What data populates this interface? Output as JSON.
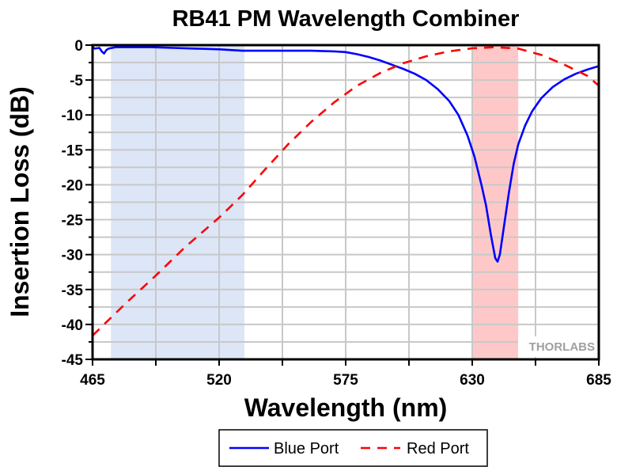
{
  "chart_data": {
    "type": "line",
    "title": "RB41 PM Wavelength Combiner",
    "xlabel": "Wavelength (nm)",
    "ylabel": "Insertion Loss (dB)",
    "xlim": [
      465,
      685
    ],
    "ylim": [
      -45,
      0
    ],
    "xticks": [
      465,
      520,
      575,
      630,
      685
    ],
    "xtick_labels": [
      "465",
      "520",
      "575",
      "630",
      "685"
    ],
    "yticks": [
      0,
      -5,
      -10,
      -15,
      -20,
      -25,
      -30,
      -35,
      -40,
      -45
    ],
    "ytick_labels": [
      "0",
      "-5",
      "-10",
      "-15",
      "-20",
      "-25",
      "-30",
      "-35",
      "-40",
      "-45"
    ],
    "grid": true,
    "shaded_bands": [
      {
        "x": [
          473,
          531
        ],
        "color": "#dce6f7"
      },
      {
        "x": [
          630,
          650
        ],
        "color": "#ffc8c8"
      }
    ],
    "series": [
      {
        "name": "Blue Port",
        "color": "#0000ff",
        "style": "solid",
        "x": [
          465,
          466,
          468,
          469,
          470,
          471,
          472,
          475,
          480,
          490,
          500,
          510,
          520,
          530,
          540,
          550,
          560,
          570,
          575,
          580,
          585,
          590,
          595,
          600,
          605,
          610,
          615,
          620,
          624,
          628,
          631,
          634,
          636,
          638,
          640,
          641,
          642,
          644,
          646,
          648,
          650,
          653,
          656,
          660,
          665,
          670,
          675,
          680,
          685
        ],
        "y": [
          -0.3,
          -0.5,
          -0.4,
          -0.9,
          -1.2,
          -0.7,
          -0.5,
          -0.3,
          -0.3,
          -0.3,
          -0.4,
          -0.5,
          -0.6,
          -0.8,
          -0.8,
          -0.8,
          -0.8,
          -0.9,
          -1.0,
          -1.3,
          -1.7,
          -2.2,
          -2.8,
          -3.4,
          -4.1,
          -5.0,
          -6.3,
          -8.0,
          -10.0,
          -13.0,
          -16.0,
          -20.0,
          -23.0,
          -27.0,
          -30.5,
          -31.0,
          -30.0,
          -25.5,
          -21.0,
          -17.0,
          -14.2,
          -11.5,
          -9.5,
          -7.6,
          -6.0,
          -4.9,
          -4.1,
          -3.5,
          -3.0
        ]
      },
      {
        "name": "Red Port",
        "color": "#ff0000",
        "style": "dashed",
        "x": [
          465,
          470,
          480,
          492.5,
          505,
          520,
          530,
          540,
          550,
          560,
          570,
          580,
          590,
          600,
          610,
          620,
          630,
          640,
          650,
          660,
          670,
          680,
          685
        ],
        "y": [
          -41.6,
          -40.0,
          -36.8,
          -33.0,
          -29.0,
          -24.7,
          -21.5,
          -17.8,
          -14.2,
          -11.0,
          -8.2,
          -5.8,
          -4.0,
          -2.6,
          -1.6,
          -0.9,
          -0.45,
          -0.3,
          -0.5,
          -1.4,
          -2.8,
          -4.4,
          -5.8
        ]
      }
    ],
    "legend": {
      "position": "bottom",
      "entries": [
        "Blue Port",
        "Red Port"
      ]
    },
    "watermark": "THORLABS"
  }
}
